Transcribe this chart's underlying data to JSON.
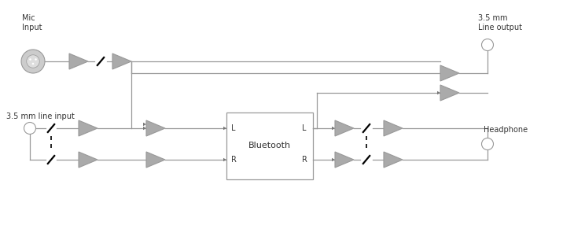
{
  "bg_color": "#ffffff",
  "line_color": "#999999",
  "block_fill": "#aaaaaa",
  "block_edge": "#999999",
  "text_color": "#333333",
  "labels": {
    "mic_input": "Mic\nInput",
    "line_input": "3.5 mm line input",
    "line_output": "3.5 mm\nLine output",
    "headphone": "Headphone",
    "bluetooth": "Bluetooth",
    "L_in": "L",
    "R_in": "R",
    "L_out": "L",
    "R_out": "R"
  },
  "fig_width": 7.3,
  "fig_height": 2.86,
  "dpi": 100
}
